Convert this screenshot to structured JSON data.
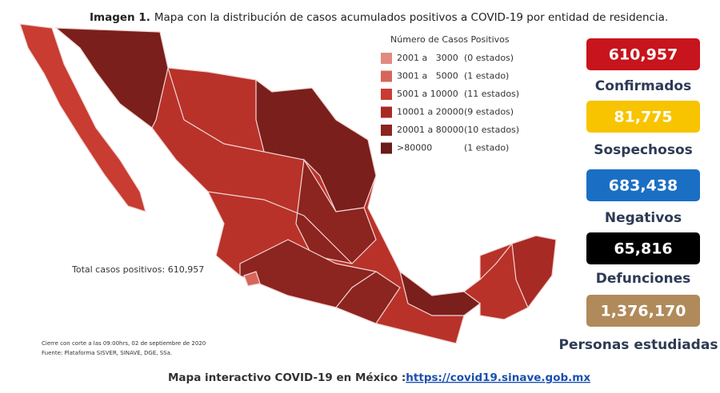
{
  "header": {
    "label": "Imagen 1.",
    "text": "Mapa con la distribución de casos acumulados positivos a COVID-19 por entidad de residencia."
  },
  "legend": {
    "title": "Número de Casos Positivos",
    "items": [
      {
        "range": "2001 a   3000",
        "count": "(0 estados)",
        "color": "#e08a80"
      },
      {
        "range": "3001 a   5000",
        "count": "(1 estado)",
        "color": "#d8655a"
      },
      {
        "range": "5001 a 10000",
        "count": "(11 estados)",
        "color": "#c83c32"
      },
      {
        "range": "10001 a 20000",
        "count": "(9 estados)",
        "color": "#a82a24"
      },
      {
        "range": "20001 a 80000",
        "count": "(10 estados)",
        "color": "#8c2420"
      },
      {
        "range": ">80000",
        "count": "(1 estado)",
        "color": "#6a1a18"
      }
    ]
  },
  "total": "Total casos positivos: 610,957",
  "notes": [
    "Cierre con corte a las 09:00hrs, 02 de septiembre de 2020",
    "Fuente: Plataforma SISVER, SINAVE, DGE, SSa."
  ],
  "stats": [
    {
      "value": "610,957",
      "label": "Confirmados",
      "color": "#c8141c"
    },
    {
      "value": "81,775",
      "label": "Sospechosos",
      "color": "#f8c400"
    },
    {
      "value": "683,438",
      "label": "Negativos",
      "color": "#1a6fc4"
    },
    {
      "value": "65,816",
      "label": "Defunciones",
      "color": "#000000"
    },
    {
      "value": "1,376,170",
      "label": "Personas estudiadas",
      "color": "#b08a5a"
    }
  ],
  "footer": {
    "text": "Mapa interactivo COVID-19 en México :",
    "link": "https://covid19.sinave.gob.mx"
  }
}
